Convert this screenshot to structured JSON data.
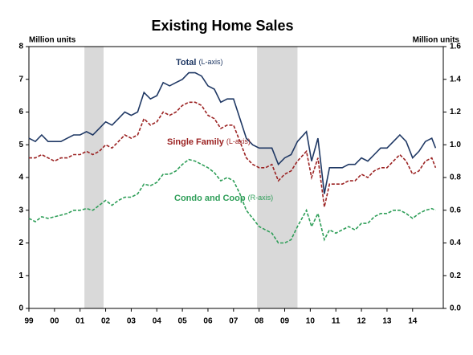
{
  "chart_data": {
    "type": "line",
    "title": "Existing Home Sales",
    "y_label": "Million units",
    "y2_label": "Million units",
    "x": [
      1999,
      1999.25,
      1999.5,
      1999.75,
      2000,
      2000.25,
      2000.5,
      2000.75,
      2001,
      2001.25,
      2001.5,
      2001.75,
      2002,
      2002.25,
      2002.5,
      2002.75,
      2003,
      2003.25,
      2003.5,
      2003.75,
      2004,
      2004.25,
      2004.5,
      2004.75,
      2005,
      2005.25,
      2005.5,
      2005.75,
      2006,
      2006.25,
      2006.5,
      2006.75,
      2007,
      2007.25,
      2007.5,
      2007.75,
      2008,
      2008.25,
      2008.5,
      2008.75,
      2009,
      2009.25,
      2009.5,
      2009.85,
      2010.05,
      2010.3,
      2010.55,
      2010.75,
      2011,
      2011.25,
      2011.5,
      2011.75,
      2012,
      2012.25,
      2012.5,
      2012.75,
      2013,
      2013.25,
      2013.5,
      2013.75,
      2014,
      2014.25,
      2014.5,
      2014.75,
      2014.9
    ],
    "series": [
      {
        "name": "Total",
        "note": "(L-axis)",
        "color": "#1f3864",
        "dashed": false,
        "axis": "y",
        "values": [
          5.2,
          5.1,
          5.3,
          5.1,
          5.1,
          5.1,
          5.2,
          5.3,
          5.3,
          5.4,
          5.3,
          5.5,
          5.7,
          5.6,
          5.8,
          6.0,
          5.9,
          6.0,
          6.6,
          6.4,
          6.5,
          6.9,
          6.8,
          6.9,
          7.0,
          7.2,
          7.2,
          7.1,
          6.8,
          6.7,
          6.3,
          6.4,
          6.4,
          5.8,
          5.2,
          5.0,
          4.9,
          4.9,
          4.9,
          4.4,
          4.6,
          4.7,
          5.1,
          5.4,
          4.5,
          5.2,
          3.5,
          4.3,
          4.3,
          4.3,
          4.4,
          4.4,
          4.6,
          4.5,
          4.7,
          4.9,
          4.9,
          5.1,
          5.3,
          5.1,
          4.6,
          4.8,
          5.1,
          5.2,
          4.9
        ]
      },
      {
        "name": "Single Family",
        "note": "(L-axis)",
        "color": "#9b2222",
        "dashed": true,
        "axis": "y",
        "values": [
          4.6,
          4.6,
          4.7,
          4.6,
          4.5,
          4.6,
          4.6,
          4.7,
          4.7,
          4.8,
          4.7,
          4.8,
          5.0,
          4.9,
          5.1,
          5.3,
          5.2,
          5.3,
          5.8,
          5.6,
          5.7,
          6.0,
          5.9,
          6.0,
          6.2,
          6.3,
          6.3,
          6.2,
          5.9,
          5.8,
          5.5,
          5.6,
          5.6,
          5.1,
          4.6,
          4.4,
          4.3,
          4.3,
          4.4,
          3.9,
          4.1,
          4.2,
          4.5,
          4.8,
          4.0,
          4.6,
          3.1,
          3.8,
          3.8,
          3.8,
          3.9,
          3.9,
          4.1,
          4.0,
          4.2,
          4.3,
          4.3,
          4.5,
          4.7,
          4.5,
          4.1,
          4.2,
          4.5,
          4.6,
          4.3
        ]
      },
      {
        "name": "Condo and Coop",
        "note": "(R-axis)",
        "color": "#2e9e58",
        "dashed": true,
        "axis": "y2",
        "values": [
          0.55,
          0.53,
          0.56,
          0.55,
          0.56,
          0.57,
          0.58,
          0.6,
          0.6,
          0.61,
          0.6,
          0.63,
          0.66,
          0.63,
          0.66,
          0.68,
          0.68,
          0.7,
          0.76,
          0.75,
          0.77,
          0.82,
          0.82,
          0.84,
          0.88,
          0.91,
          0.9,
          0.88,
          0.86,
          0.83,
          0.78,
          0.8,
          0.78,
          0.7,
          0.6,
          0.55,
          0.5,
          0.48,
          0.46,
          0.4,
          0.4,
          0.42,
          0.5,
          0.6,
          0.5,
          0.58,
          0.42,
          0.48,
          0.46,
          0.48,
          0.5,
          0.48,
          0.52,
          0.52,
          0.56,
          0.58,
          0.58,
          0.6,
          0.6,
          0.58,
          0.55,
          0.58,
          0.6,
          0.61,
          0.6
        ]
      }
    ],
    "recessions": [
      [
        2001.17,
        2001.92
      ],
      [
        2007.92,
        2009.5
      ]
    ],
    "recession_color": "#d9d9d9",
    "xlim": [
      1999,
      2015.2
    ],
    "xticks": [
      {
        "value": 1999,
        "label": "99"
      },
      {
        "value": 2000,
        "label": "00"
      },
      {
        "value": 2001,
        "label": "01"
      },
      {
        "value": 2002,
        "label": "02"
      },
      {
        "value": 2003,
        "label": "03"
      },
      {
        "value": 2004,
        "label": "04"
      },
      {
        "value": 2005,
        "label": "05"
      },
      {
        "value": 2006,
        "label": "06"
      },
      {
        "value": 2007,
        "label": "07"
      },
      {
        "value": 2008,
        "label": "08"
      },
      {
        "value": 2009,
        "label": "09"
      },
      {
        "value": 2010,
        "label": "10"
      },
      {
        "value": 2011,
        "label": "11"
      },
      {
        "value": 2012,
        "label": "12"
      },
      {
        "value": 2013,
        "label": "13"
      },
      {
        "value": 2014,
        "label": "14"
      }
    ],
    "ylim": [
      0,
      8
    ],
    "yticks": [
      0,
      1,
      2,
      3,
      4,
      5,
      6,
      7,
      8
    ],
    "y2lim": [
      0,
      1.6
    ],
    "y2ticks": [
      {
        "value": 0,
        "label": "0.0"
      },
      0.2,
      0.4,
      0.6,
      0.8,
      {
        "value": 1,
        "label": "1.0"
      },
      1.2,
      1.4,
      1.6
    ],
    "grid": false
  }
}
